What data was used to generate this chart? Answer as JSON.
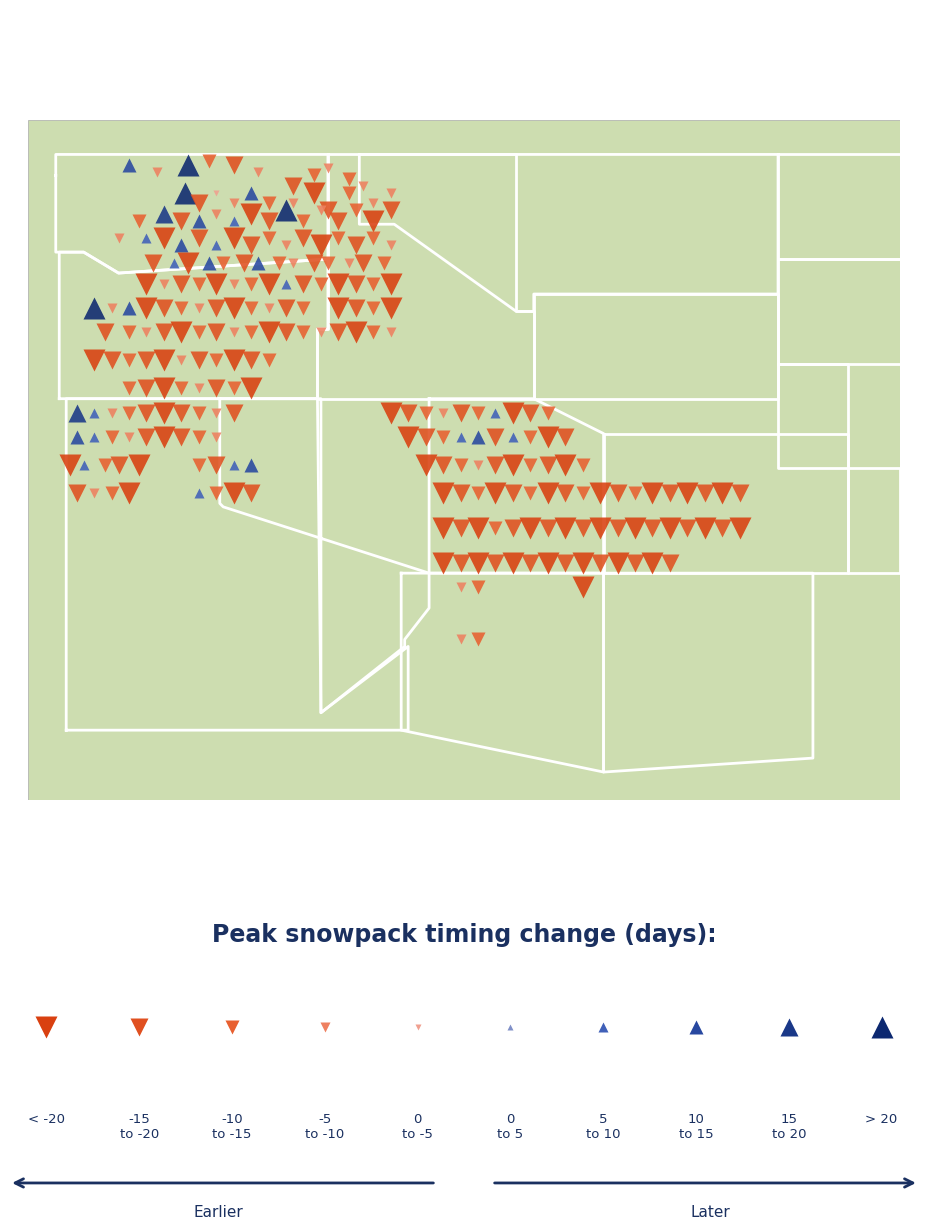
{
  "title": "Peak snowpack timing change (days):",
  "background_color": "#ffffff",
  "land_color": "#cdddb0",
  "border_color": "#ffffff",
  "border_width": 2.0,
  "ocean_color": "#ffffff",
  "legend_title_color": "#1a3060",
  "legend_label_color": "#1a3060",
  "arrow_color": "#1a3060",
  "map_lon_min": -125.5,
  "map_lon_max": -100.5,
  "map_lat_min": 30.5,
  "map_lat_max": 50.0,
  "legend_items": [
    {
      "label": "< -20",
      "color": "#d94010",
      "marker": "v",
      "ms": 16
    },
    {
      "label": "-15\nto -20",
      "color": "#e05020",
      "marker": "v",
      "ms": 13
    },
    {
      "label": "-10\nto -15",
      "color": "#e86030",
      "marker": "v",
      "ms": 10
    },
    {
      "label": "-5\nto -10",
      "color": "#ee8060",
      "marker": "v",
      "ms": 7
    },
    {
      "label": "0\nto -5",
      "color": "#f0a090",
      "marker": "v",
      "ms": 4
    },
    {
      "label": "0\nto 5",
      "color": "#8090c8",
      "marker": "^",
      "ms": 4
    },
    {
      "label": "5\nto 10",
      "color": "#4060b8",
      "marker": "^",
      "ms": 7
    },
    {
      "label": "10\nto 15",
      "color": "#2848a0",
      "marker": "^",
      "ms": 10
    },
    {
      "label": "15\nto 20",
      "color": "#1a3888",
      "marker": "^",
      "ms": 13
    },
    {
      "label": "> 20",
      "color": "#0c2870",
      "marker": "^",
      "ms": 16
    }
  ],
  "sites": [
    {
      "lon": -122.6,
      "lat": 48.7,
      "days": 12
    },
    {
      "lon": -121.8,
      "lat": 48.5,
      "days": -7
    },
    {
      "lon": -120.9,
      "lat": 48.7,
      "days": 20
    },
    {
      "lon": -120.3,
      "lat": 48.8,
      "days": -12
    },
    {
      "lon": -119.6,
      "lat": 48.7,
      "days": -17
    },
    {
      "lon": -118.9,
      "lat": 48.5,
      "days": -7
    },
    {
      "lon": -117.9,
      "lat": 48.1,
      "days": -17
    },
    {
      "lon": -117.3,
      "lat": 48.4,
      "days": -12
    },
    {
      "lon": -116.9,
      "lat": 48.6,
      "days": -7
    },
    {
      "lon": -116.3,
      "lat": 48.3,
      "days": -12
    },
    {
      "lon": -115.9,
      "lat": 48.1,
      "days": -7
    },
    {
      "lon": -121.0,
      "lat": 47.9,
      "days": 22
    },
    {
      "lon": -120.6,
      "lat": 47.6,
      "days": -17
    },
    {
      "lon": -120.1,
      "lat": 47.9,
      "days": -3
    },
    {
      "lon": -119.6,
      "lat": 47.6,
      "days": -7
    },
    {
      "lon": -119.1,
      "lat": 47.9,
      "days": 12
    },
    {
      "lon": -118.6,
      "lat": 47.6,
      "days": -12
    },
    {
      "lon": -117.9,
      "lat": 47.6,
      "days": -7
    },
    {
      "lon": -117.3,
      "lat": 47.9,
      "days": -22
    },
    {
      "lon": -116.9,
      "lat": 47.4,
      "days": -17
    },
    {
      "lon": -116.3,
      "lat": 47.9,
      "days": -12
    },
    {
      "lon": -115.6,
      "lat": 47.6,
      "days": -8
    },
    {
      "lon": -115.1,
      "lat": 47.9,
      "days": -7
    },
    {
      "lon": -122.3,
      "lat": 47.1,
      "days": -12
    },
    {
      "lon": -121.6,
      "lat": 47.3,
      "days": 15
    },
    {
      "lon": -121.1,
      "lat": 47.1,
      "days": -17
    },
    {
      "lon": -120.6,
      "lat": 47.1,
      "days": 10
    },
    {
      "lon": -120.1,
      "lat": 47.3,
      "days": -7
    },
    {
      "lon": -119.6,
      "lat": 47.1,
      "days": 7
    },
    {
      "lon": -119.1,
      "lat": 47.3,
      "days": -22
    },
    {
      "lon": -118.6,
      "lat": 47.1,
      "days": -17
    },
    {
      "lon": -118.1,
      "lat": 47.4,
      "days": 22
    },
    {
      "lon": -117.6,
      "lat": 47.1,
      "days": -12
    },
    {
      "lon": -117.1,
      "lat": 47.4,
      "days": -7
    },
    {
      "lon": -116.6,
      "lat": 47.1,
      "days": -17
    },
    {
      "lon": -116.1,
      "lat": 47.4,
      "days": -12
    },
    {
      "lon": -115.6,
      "lat": 47.1,
      "days": -22
    },
    {
      "lon": -115.1,
      "lat": 47.4,
      "days": -17
    },
    {
      "lon": -122.9,
      "lat": 46.6,
      "days": -7
    },
    {
      "lon": -122.1,
      "lat": 46.6,
      "days": 7
    },
    {
      "lon": -121.6,
      "lat": 46.6,
      "days": -22
    },
    {
      "lon": -121.1,
      "lat": 46.4,
      "days": 10
    },
    {
      "lon": -120.6,
      "lat": 46.6,
      "days": -17
    },
    {
      "lon": -120.1,
      "lat": 46.4,
      "days": 5
    },
    {
      "lon": -119.6,
      "lat": 46.6,
      "days": -22
    },
    {
      "lon": -119.1,
      "lat": 46.4,
      "days": -17
    },
    {
      "lon": -118.6,
      "lat": 46.6,
      "days": -12
    },
    {
      "lon": -118.1,
      "lat": 46.4,
      "days": -7
    },
    {
      "lon": -117.6,
      "lat": 46.6,
      "days": -17
    },
    {
      "lon": -117.1,
      "lat": 46.4,
      "days": -22
    },
    {
      "lon": -116.6,
      "lat": 46.6,
      "days": -12
    },
    {
      "lon": -116.1,
      "lat": 46.4,
      "days": -17
    },
    {
      "lon": -115.6,
      "lat": 46.6,
      "days": -12
    },
    {
      "lon": -115.1,
      "lat": 46.4,
      "days": -7
    },
    {
      "lon": -121.9,
      "lat": 45.9,
      "days": -17
    },
    {
      "lon": -121.3,
      "lat": 45.9,
      "days": 7
    },
    {
      "lon": -120.9,
      "lat": 45.9,
      "days": -22
    },
    {
      "lon": -120.3,
      "lat": 45.9,
      "days": 10
    },
    {
      "lon": -119.9,
      "lat": 45.9,
      "days": -12
    },
    {
      "lon": -119.3,
      "lat": 45.9,
      "days": -17
    },
    {
      "lon": -118.9,
      "lat": 45.9,
      "days": 12
    },
    {
      "lon": -118.3,
      "lat": 45.9,
      "days": -12
    },
    {
      "lon": -117.9,
      "lat": 45.9,
      "days": -7
    },
    {
      "lon": -117.3,
      "lat": 45.9,
      "days": -17
    },
    {
      "lon": -116.9,
      "lat": 45.9,
      "days": -12
    },
    {
      "lon": -116.3,
      "lat": 45.9,
      "days": -7
    },
    {
      "lon": -115.9,
      "lat": 45.9,
      "days": -17
    },
    {
      "lon": -115.3,
      "lat": 45.9,
      "days": -12
    },
    {
      "lon": -122.1,
      "lat": 45.3,
      "days": -22
    },
    {
      "lon": -121.6,
      "lat": 45.3,
      "days": -7
    },
    {
      "lon": -121.1,
      "lat": 45.3,
      "days": -17
    },
    {
      "lon": -120.6,
      "lat": 45.3,
      "days": -12
    },
    {
      "lon": -120.1,
      "lat": 45.3,
      "days": -22
    },
    {
      "lon": -119.6,
      "lat": 45.3,
      "days": -7
    },
    {
      "lon": -119.1,
      "lat": 45.3,
      "days": -12
    },
    {
      "lon": -118.6,
      "lat": 45.3,
      "days": -22
    },
    {
      "lon": -118.1,
      "lat": 45.3,
      "days": 7
    },
    {
      "lon": -117.6,
      "lat": 45.3,
      "days": -17
    },
    {
      "lon": -117.1,
      "lat": 45.3,
      "days": -12
    },
    {
      "lon": -116.6,
      "lat": 45.3,
      "days": -22
    },
    {
      "lon": -116.1,
      "lat": 45.3,
      "days": -17
    },
    {
      "lon": -115.6,
      "lat": 45.3,
      "days": -12
    },
    {
      "lon": -115.1,
      "lat": 45.3,
      "days": -22
    },
    {
      "lon": -123.6,
      "lat": 44.6,
      "days": 22
    },
    {
      "lon": -123.1,
      "lat": 44.6,
      "days": -7
    },
    {
      "lon": -122.6,
      "lat": 44.6,
      "days": 12
    },
    {
      "lon": -122.1,
      "lat": 44.6,
      "days": -22
    },
    {
      "lon": -121.6,
      "lat": 44.6,
      "days": -17
    },
    {
      "lon": -121.1,
      "lat": 44.6,
      "days": -12
    },
    {
      "lon": -120.6,
      "lat": 44.6,
      "days": -7
    },
    {
      "lon": -120.1,
      "lat": 44.6,
      "days": -17
    },
    {
      "lon": -119.6,
      "lat": 44.6,
      "days": -22
    },
    {
      "lon": -119.1,
      "lat": 44.6,
      "days": -12
    },
    {
      "lon": -118.6,
      "lat": 44.6,
      "days": -7
    },
    {
      "lon": -118.1,
      "lat": 44.6,
      "days": -17
    },
    {
      "lon": -117.6,
      "lat": 44.6,
      "days": -12
    },
    {
      "lon": -116.6,
      "lat": 44.6,
      "days": -22
    },
    {
      "lon": -116.1,
      "lat": 44.6,
      "days": -17
    },
    {
      "lon": -115.6,
      "lat": 44.6,
      "days": -12
    },
    {
      "lon": -115.1,
      "lat": 44.6,
      "days": -22
    },
    {
      "lon": -123.3,
      "lat": 43.9,
      "days": -17
    },
    {
      "lon": -122.6,
      "lat": 43.9,
      "days": -12
    },
    {
      "lon": -122.1,
      "lat": 43.9,
      "days": -7
    },
    {
      "lon": -121.6,
      "lat": 43.9,
      "days": -17
    },
    {
      "lon": -121.1,
      "lat": 43.9,
      "days": -22
    },
    {
      "lon": -120.6,
      "lat": 43.9,
      "days": -12
    },
    {
      "lon": -120.1,
      "lat": 43.9,
      "days": -17
    },
    {
      "lon": -119.6,
      "lat": 43.9,
      "days": -7
    },
    {
      "lon": -119.1,
      "lat": 43.9,
      "days": -12
    },
    {
      "lon": -118.6,
      "lat": 43.9,
      "days": -22
    },
    {
      "lon": -118.1,
      "lat": 43.9,
      "days": -17
    },
    {
      "lon": -117.6,
      "lat": 43.9,
      "days": -12
    },
    {
      "lon": -117.1,
      "lat": 43.9,
      "days": -7
    },
    {
      "lon": -116.6,
      "lat": 43.9,
      "days": -17
    },
    {
      "lon": -116.1,
      "lat": 43.9,
      "days": -22
    },
    {
      "lon": -115.6,
      "lat": 43.9,
      "days": -12
    },
    {
      "lon": -115.1,
      "lat": 43.9,
      "days": -7
    },
    {
      "lon": -123.6,
      "lat": 43.1,
      "days": -22
    },
    {
      "lon": -123.1,
      "lat": 43.1,
      "days": -17
    },
    {
      "lon": -122.6,
      "lat": 43.1,
      "days": -12
    },
    {
      "lon": -122.1,
      "lat": 43.1,
      "days": -17
    },
    {
      "lon": -121.6,
      "lat": 43.1,
      "days": -22
    },
    {
      "lon": -121.1,
      "lat": 43.1,
      "days": -7
    },
    {
      "lon": -120.6,
      "lat": 43.1,
      "days": -17
    },
    {
      "lon": -120.1,
      "lat": 43.1,
      "days": -12
    },
    {
      "lon": -119.6,
      "lat": 43.1,
      "days": -22
    },
    {
      "lon": -119.1,
      "lat": 43.1,
      "days": -17
    },
    {
      "lon": -118.6,
      "lat": 43.1,
      "days": -12
    },
    {
      "lon": -122.6,
      "lat": 42.3,
      "days": -12
    },
    {
      "lon": -122.1,
      "lat": 42.3,
      "days": -17
    },
    {
      "lon": -121.6,
      "lat": 42.3,
      "days": -22
    },
    {
      "lon": -121.1,
      "lat": 42.3,
      "days": -12
    },
    {
      "lon": -120.6,
      "lat": 42.3,
      "days": -7
    },
    {
      "lon": -120.1,
      "lat": 42.3,
      "days": -17
    },
    {
      "lon": -119.6,
      "lat": 42.3,
      "days": -12
    },
    {
      "lon": -119.1,
      "lat": 42.3,
      "days": -22
    },
    {
      "lon": -124.1,
      "lat": 41.6,
      "days": 15
    },
    {
      "lon": -123.6,
      "lat": 41.6,
      "days": 7
    },
    {
      "lon": -123.1,
      "lat": 41.6,
      "days": -7
    },
    {
      "lon": -122.6,
      "lat": 41.6,
      "days": -12
    },
    {
      "lon": -122.1,
      "lat": 41.6,
      "days": -17
    },
    {
      "lon": -121.6,
      "lat": 41.6,
      "days": -22
    },
    {
      "lon": -121.1,
      "lat": 41.6,
      "days": -17
    },
    {
      "lon": -120.6,
      "lat": 41.6,
      "days": -12
    },
    {
      "lon": -120.1,
      "lat": 41.6,
      "days": -7
    },
    {
      "lon": -119.6,
      "lat": 41.6,
      "days": -17
    },
    {
      "lon": -115.1,
      "lat": 41.6,
      "days": -22
    },
    {
      "lon": -114.6,
      "lat": 41.6,
      "days": -17
    },
    {
      "lon": -114.1,
      "lat": 41.6,
      "days": -12
    },
    {
      "lon": -113.6,
      "lat": 41.6,
      "days": -7
    },
    {
      "lon": -113.1,
      "lat": 41.6,
      "days": -17
    },
    {
      "lon": -112.6,
      "lat": 41.6,
      "days": -12
    },
    {
      "lon": -112.1,
      "lat": 41.6,
      "days": 7
    },
    {
      "lon": -111.6,
      "lat": 41.6,
      "days": -22
    },
    {
      "lon": -111.1,
      "lat": 41.6,
      "days": -17
    },
    {
      "lon": -110.6,
      "lat": 41.6,
      "days": -12
    },
    {
      "lon": -124.1,
      "lat": 40.9,
      "days": 12
    },
    {
      "lon": -123.6,
      "lat": 40.9,
      "days": 7
    },
    {
      "lon": -123.1,
      "lat": 40.9,
      "days": -12
    },
    {
      "lon": -122.6,
      "lat": 40.9,
      "days": -7
    },
    {
      "lon": -122.1,
      "lat": 40.9,
      "days": -17
    },
    {
      "lon": -121.6,
      "lat": 40.9,
      "days": -22
    },
    {
      "lon": -121.1,
      "lat": 40.9,
      "days": -17
    },
    {
      "lon": -120.6,
      "lat": 40.9,
      "days": -12
    },
    {
      "lon": -120.1,
      "lat": 40.9,
      "days": -7
    },
    {
      "lon": -114.6,
      "lat": 40.9,
      "days": -22
    },
    {
      "lon": -114.1,
      "lat": 40.9,
      "days": -17
    },
    {
      "lon": -113.6,
      "lat": 40.9,
      "days": -12
    },
    {
      "lon": -113.1,
      "lat": 40.9,
      "days": 7
    },
    {
      "lon": -112.6,
      "lat": 40.9,
      "days": 12
    },
    {
      "lon": -112.1,
      "lat": 40.9,
      "days": -17
    },
    {
      "lon": -111.6,
      "lat": 40.9,
      "days": 7
    },
    {
      "lon": -111.1,
      "lat": 40.9,
      "days": -12
    },
    {
      "lon": -110.6,
      "lat": 40.9,
      "days": -22
    },
    {
      "lon": -110.1,
      "lat": 40.9,
      "days": -17
    },
    {
      "lon": -124.3,
      "lat": 40.1,
      "days": -22
    },
    {
      "lon": -123.9,
      "lat": 40.1,
      "days": 7
    },
    {
      "lon": -123.3,
      "lat": 40.1,
      "days": -12
    },
    {
      "lon": -122.9,
      "lat": 40.1,
      "days": -17
    },
    {
      "lon": -122.3,
      "lat": 40.1,
      "days": -22
    },
    {
      "lon": -120.6,
      "lat": 40.1,
      "days": -12
    },
    {
      "lon": -120.1,
      "lat": 40.1,
      "days": -17
    },
    {
      "lon": -119.6,
      "lat": 40.1,
      "days": 7
    },
    {
      "lon": -119.1,
      "lat": 40.1,
      "days": 12
    },
    {
      "lon": -114.1,
      "lat": 40.1,
      "days": -22
    },
    {
      "lon": -113.6,
      "lat": 40.1,
      "days": -17
    },
    {
      "lon": -113.1,
      "lat": 40.1,
      "days": -12
    },
    {
      "lon": -112.6,
      "lat": 40.1,
      "days": -7
    },
    {
      "lon": -112.1,
      "lat": 40.1,
      "days": -17
    },
    {
      "lon": -111.6,
      "lat": 40.1,
      "days": -22
    },
    {
      "lon": -111.1,
      "lat": 40.1,
      "days": -12
    },
    {
      "lon": -110.6,
      "lat": 40.1,
      "days": -17
    },
    {
      "lon": -110.1,
      "lat": 40.1,
      "days": -22
    },
    {
      "lon": -109.6,
      "lat": 40.1,
      "days": -12
    },
    {
      "lon": -124.1,
      "lat": 39.3,
      "days": -17
    },
    {
      "lon": -123.6,
      "lat": 39.3,
      "days": -7
    },
    {
      "lon": -123.1,
      "lat": 39.3,
      "days": -12
    },
    {
      "lon": -122.6,
      "lat": 39.3,
      "days": -22
    },
    {
      "lon": -120.6,
      "lat": 39.3,
      "days": 7
    },
    {
      "lon": -120.1,
      "lat": 39.3,
      "days": -12
    },
    {
      "lon": -119.6,
      "lat": 39.3,
      "days": -22
    },
    {
      "lon": -119.1,
      "lat": 39.3,
      "days": -17
    },
    {
      "lon": -113.6,
      "lat": 39.3,
      "days": -22
    },
    {
      "lon": -113.1,
      "lat": 39.3,
      "days": -17
    },
    {
      "lon": -112.6,
      "lat": 39.3,
      "days": -12
    },
    {
      "lon": -112.1,
      "lat": 39.3,
      "days": -22
    },
    {
      "lon": -111.6,
      "lat": 39.3,
      "days": -17
    },
    {
      "lon": -111.1,
      "lat": 39.3,
      "days": -12
    },
    {
      "lon": -110.6,
      "lat": 39.3,
      "days": -22
    },
    {
      "lon": -110.1,
      "lat": 39.3,
      "days": -17
    },
    {
      "lon": -109.6,
      "lat": 39.3,
      "days": -12
    },
    {
      "lon": -109.1,
      "lat": 39.3,
      "days": -22
    },
    {
      "lon": -108.6,
      "lat": 39.3,
      "days": -17
    },
    {
      "lon": -108.1,
      "lat": 39.3,
      "days": -12
    },
    {
      "lon": -107.6,
      "lat": 39.3,
      "days": -22
    },
    {
      "lon": -107.1,
      "lat": 39.3,
      "days": -17
    },
    {
      "lon": -106.6,
      "lat": 39.3,
      "days": -22
    },
    {
      "lon": -106.1,
      "lat": 39.3,
      "days": -17
    },
    {
      "lon": -105.6,
      "lat": 39.3,
      "days": -22
    },
    {
      "lon": -105.1,
      "lat": 39.3,
      "days": -17
    },
    {
      "lon": -113.6,
      "lat": 38.3,
      "days": -22
    },
    {
      "lon": -113.1,
      "lat": 38.3,
      "days": -17
    },
    {
      "lon": -112.6,
      "lat": 38.3,
      "days": -22
    },
    {
      "lon": -112.1,
      "lat": 38.3,
      "days": -12
    },
    {
      "lon": -111.6,
      "lat": 38.3,
      "days": -17
    },
    {
      "lon": -111.1,
      "lat": 38.3,
      "days": -22
    },
    {
      "lon": -110.6,
      "lat": 38.3,
      "days": -17
    },
    {
      "lon": -110.1,
      "lat": 38.3,
      "days": -22
    },
    {
      "lon": -109.6,
      "lat": 38.3,
      "days": -17
    },
    {
      "lon": -109.1,
      "lat": 38.3,
      "days": -22
    },
    {
      "lon": -108.6,
      "lat": 38.3,
      "days": -17
    },
    {
      "lon": -108.1,
      "lat": 38.3,
      "days": -22
    },
    {
      "lon": -107.6,
      "lat": 38.3,
      "days": -17
    },
    {
      "lon": -107.1,
      "lat": 38.3,
      "days": -22
    },
    {
      "lon": -106.6,
      "lat": 38.3,
      "days": -17
    },
    {
      "lon": -106.1,
      "lat": 38.3,
      "days": -22
    },
    {
      "lon": -105.6,
      "lat": 38.3,
      "days": -17
    },
    {
      "lon": -105.1,
      "lat": 38.3,
      "days": -22
    },
    {
      "lon": -113.6,
      "lat": 37.3,
      "days": -22
    },
    {
      "lon": -113.1,
      "lat": 37.3,
      "days": -17
    },
    {
      "lon": -112.6,
      "lat": 37.3,
      "days": -22
    },
    {
      "lon": -112.1,
      "lat": 37.3,
      "days": -17
    },
    {
      "lon": -111.6,
      "lat": 37.3,
      "days": -22
    },
    {
      "lon": -111.1,
      "lat": 37.3,
      "days": -17
    },
    {
      "lon": -110.6,
      "lat": 37.3,
      "days": -22
    },
    {
      "lon": -110.1,
      "lat": 37.3,
      "days": -17
    },
    {
      "lon": -109.6,
      "lat": 37.3,
      "days": -22
    },
    {
      "lon": -109.1,
      "lat": 37.3,
      "days": -17
    },
    {
      "lon": -108.6,
      "lat": 37.3,
      "days": -22
    },
    {
      "lon": -108.1,
      "lat": 37.3,
      "days": -17
    },
    {
      "lon": -107.6,
      "lat": 37.3,
      "days": -22
    },
    {
      "lon": -107.1,
      "lat": 37.3,
      "days": -17
    },
    {
      "lon": -113.1,
      "lat": 36.6,
      "days": -7
    },
    {
      "lon": -112.6,
      "lat": 36.6,
      "days": -12
    },
    {
      "lon": -109.6,
      "lat": 36.6,
      "days": -22
    },
    {
      "lon": -113.1,
      "lat": 35.1,
      "days": -7
    },
    {
      "lon": -112.6,
      "lat": 35.1,
      "days": -12
    }
  ]
}
